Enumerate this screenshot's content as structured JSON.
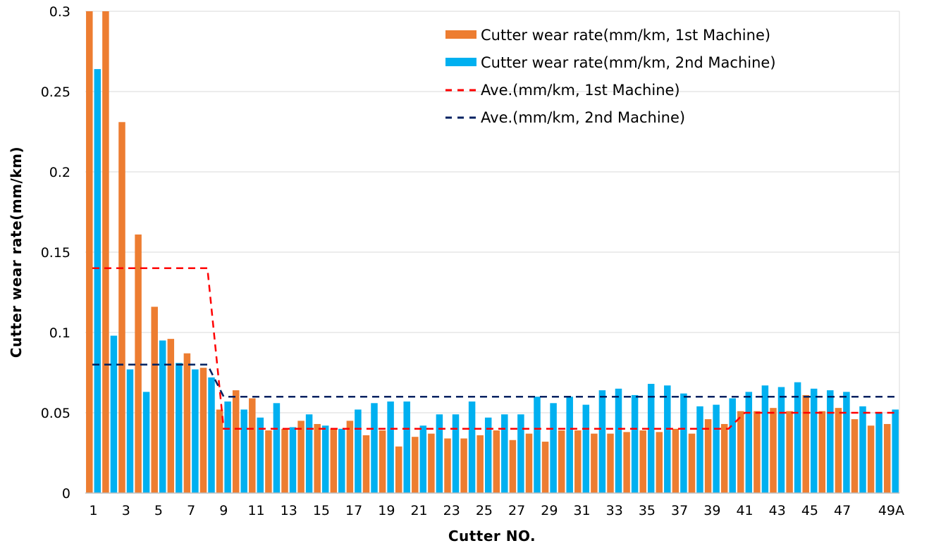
{
  "chart_data": {
    "type": "bar",
    "title": "",
    "xlabel": "Cutter NO.",
    "ylabel": "Cutter wear rate(mm/km)",
    "ylim": [
      0,
      0.3
    ],
    "yticks": [
      "0",
      "0.05",
      "0.1",
      "0.15",
      "0.2",
      "0.25",
      "0.3"
    ],
    "grid": true,
    "legend_position": "top-right",
    "categories": [
      "1",
      "2",
      "3",
      "4",
      "5",
      "6",
      "7",
      "8",
      "9",
      "10",
      "11",
      "12",
      "13",
      "14",
      "15",
      "16",
      "17",
      "18",
      "19",
      "20",
      "21",
      "22",
      "23",
      "24",
      "25",
      "26",
      "27",
      "28",
      "29",
      "30",
      "31",
      "32",
      "33",
      "34",
      "35",
      "36",
      "37",
      "38",
      "39",
      "40",
      "41",
      "42",
      "43",
      "44",
      "45",
      "46",
      "47",
      "48",
      "49",
      "49A"
    ],
    "xtick_labels": [
      "1",
      "3",
      "5",
      "7",
      "9",
      "11",
      "13",
      "15",
      "17",
      "19",
      "21",
      "23",
      "25",
      "27",
      "29",
      "31",
      "33",
      "35",
      "37",
      "39",
      "41",
      "43",
      "45",
      "47",
      "49A"
    ],
    "xtick_categories": [
      "1",
      "3",
      "5",
      "7",
      "9",
      "11",
      "13",
      "15",
      "17",
      "19",
      "21",
      "23",
      "25",
      "27",
      "29",
      "31",
      "33",
      "35",
      "37",
      "39",
      "41",
      "43",
      "45",
      "47",
      "49A"
    ],
    "series": [
      {
        "name": "Cutter wear rate(mm/km, 1st Machine)",
        "kind": "bar",
        "color": "#ed7d31",
        "values": [
          0.3,
          0.3,
          0.231,
          0.161,
          0.116,
          0.096,
          0.087,
          0.078,
          0.052,
          0.064,
          0.059,
          0.039,
          0.04,
          0.045,
          0.043,
          0.04,
          0.045,
          0.036,
          0.039,
          0.029,
          0.035,
          0.037,
          0.034,
          0.034,
          0.036,
          0.039,
          0.033,
          0.037,
          0.032,
          0.039,
          0.039,
          0.037,
          0.037,
          0.038,
          0.039,
          0.038,
          0.04,
          0.037,
          0.046,
          0.043,
          0.051,
          0.051,
          0.053,
          0.051,
          0.061,
          0.051,
          0.053,
          0.046,
          0.042,
          0.043
        ]
      },
      {
        "name": "Cutter wear rate(mm/km, 2nd Machine)",
        "kind": "bar",
        "color": "#00b0f0",
        "values": [
          0.264,
          0.098,
          0.077,
          0.063,
          0.095,
          0.081,
          0.077,
          0.072,
          0.057,
          0.052,
          0.047,
          0.056,
          0.041,
          0.049,
          0.042,
          0.04,
          0.052,
          0.056,
          0.057,
          0.057,
          0.042,
          0.049,
          0.049,
          0.057,
          0.047,
          0.049,
          0.049,
          0.06,
          0.056,
          0.06,
          0.055,
          0.064,
          0.065,
          0.061,
          0.068,
          0.067,
          0.062,
          0.054,
          0.055,
          0.059,
          0.063,
          0.067,
          0.066,
          0.069,
          0.065,
          0.064,
          0.063,
          0.054,
          0.05,
          0.052
        ]
      },
      {
        "name": "Ave.(mm/km, 1st Machine)",
        "kind": "dashed-line",
        "color": "#ff0000",
        "values": [
          0.14,
          0.14,
          0.14,
          0.14,
          0.14,
          0.14,
          0.14,
          0.14,
          0.04,
          0.04,
          0.04,
          0.04,
          0.04,
          0.04,
          0.04,
          0.04,
          0.04,
          0.04,
          0.04,
          0.04,
          0.04,
          0.04,
          0.04,
          0.04,
          0.04,
          0.04,
          0.04,
          0.04,
          0.04,
          0.04,
          0.04,
          0.04,
          0.04,
          0.04,
          0.04,
          0.04,
          0.04,
          0.04,
          0.04,
          0.04,
          0.05,
          0.05,
          0.05,
          0.05,
          0.05,
          0.05,
          0.05,
          0.05,
          0.05,
          0.05
        ]
      },
      {
        "name": "Ave.(mm/km, 2nd Machine)",
        "kind": "dashed-line",
        "color": "#002060",
        "values": [
          0.08,
          0.08,
          0.08,
          0.08,
          0.08,
          0.08,
          0.08,
          0.08,
          0.06,
          0.06,
          0.06,
          0.06,
          0.06,
          0.06,
          0.06,
          0.06,
          0.06,
          0.06,
          0.06,
          0.06,
          0.06,
          0.06,
          0.06,
          0.06,
          0.06,
          0.06,
          0.06,
          0.06,
          0.06,
          0.06,
          0.06,
          0.06,
          0.06,
          0.06,
          0.06,
          0.06,
          0.06,
          0.06,
          0.06,
          0.06,
          0.06,
          0.06,
          0.06,
          0.06,
          0.06,
          0.06,
          0.06,
          0.06,
          0.06,
          0.06
        ]
      }
    ]
  }
}
